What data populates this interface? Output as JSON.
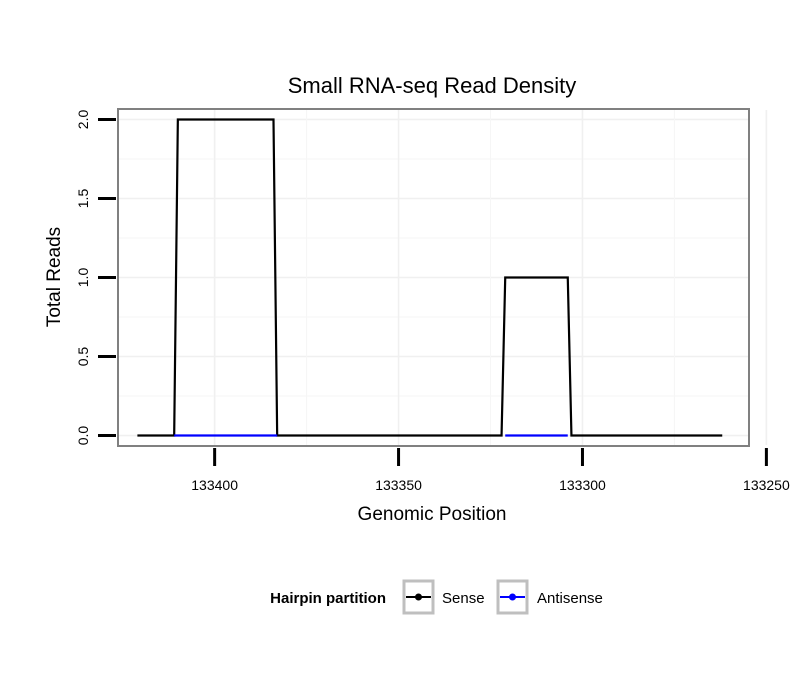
{
  "chart_data": {
    "type": "line",
    "title": "Small RNA-seq Read Density",
    "xlabel": "Genomic Position",
    "ylabel": "Total Reads",
    "xlim": [
      133426,
      133255
    ],
    "ylim": [
      -0.06,
      2.06
    ],
    "x_reversed": true,
    "x_ticks": [
      133400,
      133350,
      133300,
      133250
    ],
    "x_tick_labels": [
      "133400",
      "133350",
      "133300",
      "133250"
    ],
    "y_ticks": [
      0,
      0.5,
      1.0,
      1.5,
      2.0
    ],
    "y_tick_labels": [
      "0.0",
      "0.5",
      "1.0",
      "1.5",
      "2.0"
    ],
    "grid": true,
    "legend": {
      "title": "Hairpin partition",
      "position": "bottom",
      "entries": [
        "Sense",
        "Antisense"
      ]
    },
    "series": [
      {
        "name": "Sense",
        "color": "#000000",
        "x": [
          133421,
          133411,
          133410,
          133384,
          133383,
          133322,
          133321,
          133304,
          133303,
          133262
        ],
        "y": [
          0,
          0,
          2,
          2,
          0,
          0,
          1,
          1,
          0,
          0
        ]
      },
      {
        "name": "Antisense",
        "color": "#0000ff",
        "x": [
          133411,
          133383
        ],
        "y": [
          0,
          0
        ]
      },
      {
        "name": "Antisense",
        "color": "#0000ff",
        "x": [
          133321,
          133304
        ],
        "y": [
          0,
          0
        ]
      }
    ]
  }
}
